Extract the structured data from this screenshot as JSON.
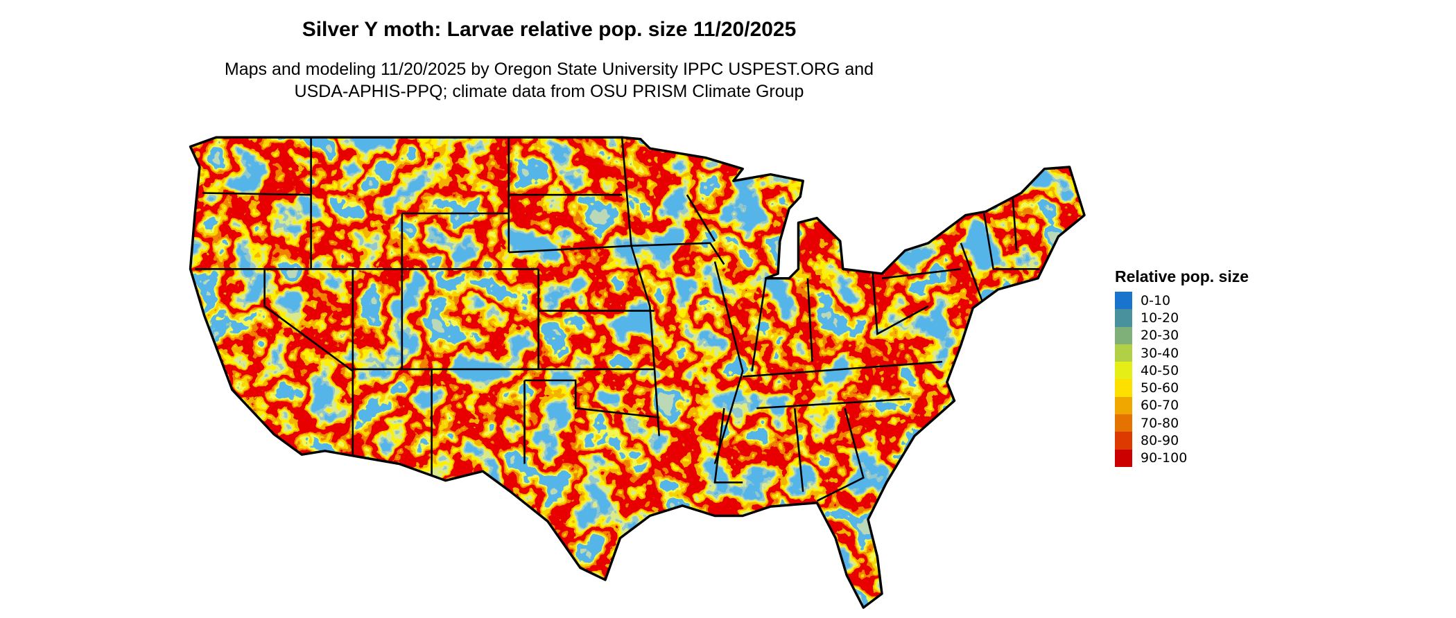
{
  "title": "Silver Y moth: Larvae relative pop. size 11/20/2025",
  "subtitle_line1": "Maps and modeling 11/20/2025 by Oregon State University IPPC USPEST.ORG and",
  "subtitle_line2": "USDA-APHIS-PPQ; climate data from OSU PRISM Climate Group",
  "map": {
    "region": "Contiguous United States",
    "type": "gridded choropleth with state boundaries"
  },
  "legend": {
    "title": "Relative pop. size",
    "items": [
      {
        "label": "0-10",
        "color": "#1874CD"
      },
      {
        "label": "10-20",
        "color": "#4A919E"
      },
      {
        "label": "20-30",
        "color": "#7FB07A"
      },
      {
        "label": "30-40",
        "color": "#B2D045"
      },
      {
        "label": "40-50",
        "color": "#E5EE17"
      },
      {
        "label": "50-60",
        "color": "#FDE000"
      },
      {
        "label": "60-70",
        "color": "#F0A800"
      },
      {
        "label": "70-80",
        "color": "#E57300"
      },
      {
        "label": "80-90",
        "color": "#DC3A00"
      },
      {
        "label": "90-100",
        "color": "#CD0000"
      }
    ]
  }
}
